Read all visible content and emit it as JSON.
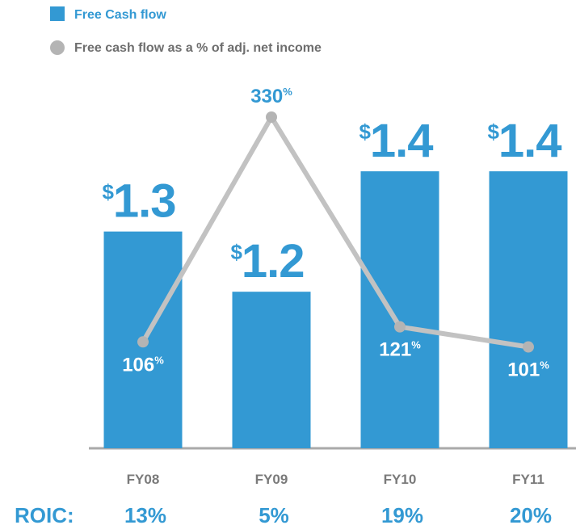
{
  "chart_data": {
    "type": "bar_line",
    "categories": [
      "FY08",
      "FY09",
      "FY10",
      "FY11"
    ],
    "series": [
      {
        "name": "Free Cash flow",
        "color": "#3399d3",
        "values": [
          1.3,
          1.2,
          1.4,
          1.4
        ],
        "value_labels": [
          "$1.3",
          "$1.2",
          "$1.4",
          "$1.4"
        ]
      },
      {
        "name": "Free cash flow as a % of adj. net income",
        "color": "#c2c2c2",
        "marker_color": "#b4b4b4",
        "axis": "y2",
        "values": [
          106,
          330,
          121,
          101
        ],
        "value_labels": [
          "106%",
          "330%",
          "121%",
          "101%"
        ]
      }
    ],
    "ylim": [
      0.94,
      1.49
    ],
    "y2lim": [
      0,
      330
    ],
    "roic_label": "ROIC:",
    "roic": [
      "13%",
      "5%",
      "19%",
      "20%"
    ]
  }
}
